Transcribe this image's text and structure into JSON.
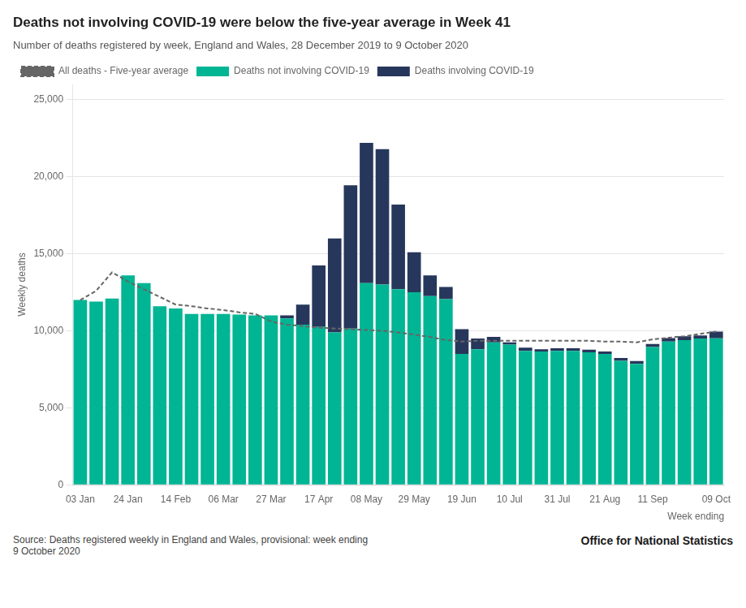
{
  "chart_data": {
    "type": "bar",
    "title": "Deaths not involving COVID-19 were below the five-year average in Week 41",
    "subtitle": "Number of deaths registered by week, England and Wales, 28 December 2019 to 9 October 2020",
    "xlabel": "Week ending",
    "ylabel": "Weekly deaths",
    "annotations": [
      "Source: Deaths registered weekly in England and Wales, provisional: week ending\n9 October 2020",
      "Office for National Statistics"
    ],
    "categories": [
      "03 Jan",
      null,
      null,
      "24 Jan",
      null,
      null,
      "14 Feb",
      null,
      null,
      "06 Mar",
      null,
      null,
      "27 Mar",
      null,
      null,
      "17 Apr",
      null,
      null,
      "08 May",
      null,
      null,
      "29 May",
      null,
      null,
      "19 Jun",
      null,
      null,
      "10 Jul",
      null,
      null,
      "31 Jul",
      null,
      null,
      "21 Aug",
      null,
      null,
      "11 Sep",
      null,
      null,
      null,
      "09 Oct"
    ],
    "series": [
      {
        "name": "Deaths not involving COVID-19",
        "type": "bar",
        "color": "#00B594",
        "values": [
          12000,
          11900,
          12100,
          13600,
          13100,
          11600,
          11450,
          11100,
          11100,
          11100,
          11050,
          11000,
          11000,
          10800,
          10400,
          10250,
          9900,
          10150,
          13100,
          13000,
          12700,
          12500,
          12250,
          12050,
          8500,
          8800,
          9250,
          9100,
          8700,
          8650,
          8700,
          8700,
          8600,
          8500,
          8050,
          7850,
          8950,
          9300,
          9400,
          9500,
          9516
        ]
      },
      {
        "name": "Deaths involving COVID-19",
        "type": "bar",
        "color": "#27375C",
        "values": [
          0,
          0,
          0,
          0,
          0,
          0,
          0,
          0,
          0,
          0,
          0,
          0,
          0,
          200,
          1300,
          4000,
          6100,
          9300,
          9100,
          8800,
          5500,
          2600,
          1350,
          800,
          1600,
          700,
          350,
          150,
          200,
          150,
          170,
          170,
          170,
          160,
          180,
          190,
          200,
          230,
          250,
          200,
          438
        ]
      },
      {
        "name": "All deaths - Five-year average",
        "type": "line",
        "line_style": "dashed",
        "color": "#666666",
        "values": [
          12000,
          12600,
          13800,
          13200,
          12700,
          12200,
          11700,
          11600,
          11450,
          11350,
          11200,
          11100,
          10600,
          10400,
          10300,
          10200,
          10150,
          10100,
          10050,
          10000,
          9900,
          9750,
          9600,
          9400,
          9300,
          9350,
          9350,
          9350,
          9350,
          9350,
          9350,
          9350,
          9350,
          9300,
          9300,
          9250,
          9450,
          9550,
          9650,
          9800,
          9954
        ]
      }
    ],
    "stacked": true,
    "ylim": [
      0,
      26000
    ],
    "yticks": [
      0,
      {
        "value": 5000,
        "label": "5,000"
      },
      {
        "value": 10000,
        "label": "10,000"
      },
      {
        "value": 15000,
        "label": "15,000"
      },
      {
        "value": 20000,
        "label": "20,000"
      },
      {
        "value": 25000,
        "label": "25,000"
      }
    ],
    "grid": true,
    "legend": "top"
  }
}
